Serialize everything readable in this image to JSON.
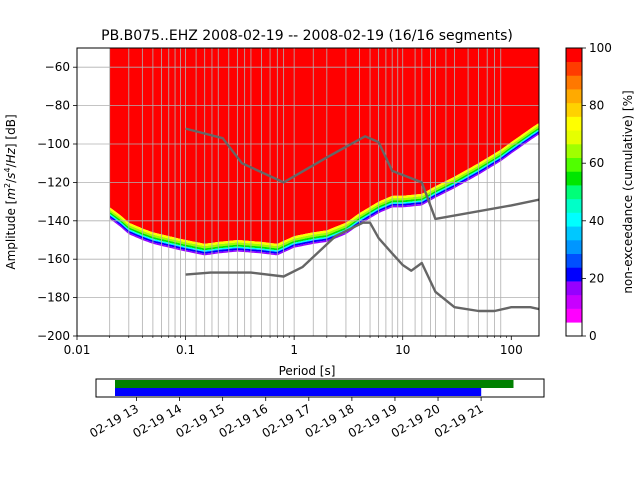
{
  "chart_data": [
    {
      "type": "heatmap",
      "title": "PB.B075..EHZ   2008-02-19 -- 2008-02-19  (16/16 segments)",
      "xlabel": "Period [s]",
      "ylabel": "Amplitude [m²/s⁴/Hz] [dB]",
      "xscale": "log",
      "xlim": [
        0.01,
        180
      ],
      "ylim": [
        -200,
        -50
      ],
      "xticks": [
        {
          "value": 0.01,
          "label": "0.01"
        },
        {
          "value": 0.1,
          "label": "0.1"
        },
        {
          "value": 1,
          "label": "1"
        },
        {
          "value": 10,
          "label": "10"
        },
        {
          "value": 100,
          "label": "100"
        }
      ],
      "yticks": [
        -60,
        -80,
        -100,
        -120,
        -140,
        -160,
        -180,
        -200
      ],
      "grid": true,
      "colorbar": {
        "label": "non-exceedance (cumulative) [%]",
        "range": [
          0,
          100
        ],
        "ticks": [
          0,
          20,
          40,
          60,
          80,
          100
        ],
        "levels": [
          "#ffffff",
          "#ff00ff",
          "#c800ff",
          "#9600ff",
          "#0000ff",
          "#0050ff",
          "#0096ff",
          "#00c8ff",
          "#00ffff",
          "#00ffc8",
          "#00ff78",
          "#00e600",
          "#50ff00",
          "#a0ff00",
          "#e6ff00",
          "#ffff00",
          "#ffd200",
          "#ffaa00",
          "#ff7800",
          "#ff3c00",
          "#ff0000"
        ]
      },
      "psd_cloud": {
        "fill_color": "#ff0000",
        "top_value": -50,
        "period_start": 0.02,
        "lower_edge": [
          {
            "period": 0.02,
            "amplitude": -133
          },
          {
            "period": 0.025,
            "amplitude": -137
          },
          {
            "period": 0.03,
            "amplitude": -141
          },
          {
            "period": 0.04,
            "amplitude": -144
          },
          {
            "period": 0.05,
            "amplitude": -146
          },
          {
            "period": 0.07,
            "amplitude": -148
          },
          {
            "period": 0.1,
            "amplitude": -150
          },
          {
            "period": 0.15,
            "amplitude": -152
          },
          {
            "period": 0.2,
            "amplitude": -151
          },
          {
            "period": 0.3,
            "amplitude": -150
          },
          {
            "period": 0.5,
            "amplitude": -151
          },
          {
            "period": 0.7,
            "amplitude": -152
          },
          {
            "period": 1,
            "amplitude": -148
          },
          {
            "period": 1.5,
            "amplitude": -146
          },
          {
            "period": 2,
            "amplitude": -145
          },
          {
            "period": 3,
            "amplitude": -141
          },
          {
            "period": 4,
            "amplitude": -136
          },
          {
            "period": 6,
            "amplitude": -130
          },
          {
            "period": 8,
            "amplitude": -127
          },
          {
            "period": 10,
            "amplitude": -127
          },
          {
            "period": 15,
            "amplitude": -126
          },
          {
            "period": 20,
            "amplitude": -122
          },
          {
            "period": 30,
            "amplitude": -117
          },
          {
            "period": 50,
            "amplitude": -110
          },
          {
            "period": 80,
            "amplitude": -103
          },
          {
            "period": 100,
            "amplitude": -99
          },
          {
            "period": 150,
            "amplitude": -92
          },
          {
            "period": 180,
            "amplitude": -89
          }
        ],
        "fringe_bands": [
          {
            "color": "#ffff00",
            "width_db": 1.2
          },
          {
            "color": "#a0ff00",
            "width_db": 1.2
          },
          {
            "color": "#00e600",
            "width_db": 1.0
          },
          {
            "color": "#00ffff",
            "width_db": 0.8
          },
          {
            "color": "#0000ff",
            "width_db": 1.0
          },
          {
            "color": "#9600ff",
            "width_db": 0.8
          }
        ]
      },
      "model_curves": [
        {
          "name": "",
          "color": "#666666",
          "points": [
            [
              0.1,
              -92
            ],
            [
              0.22,
              -97
            ],
            [
              0.33,
              -110
            ],
            [
              0.8,
              -120
            ],
            [
              2,
              -107
            ],
            [
              4.5,
              -96
            ],
            [
              6,
              -99
            ],
            [
              8,
              -114
            ],
            [
              15,
              -120
            ],
            [
              20,
              -139
            ],
            [
              100,
              -132
            ],
            [
              180,
              -129
            ]
          ]
        },
        {
          "name": "",
          "color": "#666666",
          "points": [
            [
              0.1,
              -168
            ],
            [
              0.17,
              -167
            ],
            [
              0.4,
              -167
            ],
            [
              0.8,
              -169
            ],
            [
              1.2,
              -164
            ],
            [
              2.4,
              -148
            ],
            [
              4.3,
              -141
            ],
            [
              5,
              -141
            ],
            [
              6,
              -149
            ],
            [
              8,
              -157
            ],
            [
              10,
              -163
            ],
            [
              12,
              -166
            ],
            [
              15,
              -162
            ],
            [
              20,
              -177
            ],
            [
              30,
              -185
            ],
            [
              50,
              -187
            ],
            [
              70,
              -187
            ],
            [
              100,
              -185
            ],
            [
              150,
              -185
            ],
            [
              180,
              -186
            ]
          ]
        }
      ],
      "period_gridlines": [
        0.02,
        0.03,
        0.04,
        0.05,
        0.06,
        0.07,
        0.08,
        0.09,
        0.1,
        0.125,
        0.15,
        0.175,
        0.2,
        0.25,
        0.3,
        0.35,
        0.4,
        0.5,
        0.6,
        0.7,
        0.8,
        1,
        1.5,
        2,
        3,
        4,
        5,
        6,
        7,
        8,
        9,
        10,
        13,
        15,
        18,
        20,
        25,
        30,
        40,
        50,
        60,
        70,
        80
      ]
    },
    {
      "type": "timeline",
      "tick_labels": [
        "02-19 13",
        "02-19 14",
        "02-19 15",
        "02-19 16",
        "02-19 17",
        "02-19 18",
        "02-19 19",
        "02-19 20",
        "02-19 21"
      ],
      "range_hours": [
        12.06,
        22.46
      ],
      "first_tick_hour": 13,
      "bars": [
        {
          "name": "",
          "color": "#008000",
          "start_hour": 12.5,
          "end_hour": 21.75
        },
        {
          "name": "",
          "color": "#0000ff",
          "start_hour": 12.5,
          "end_hour": 21.0
        }
      ]
    }
  ]
}
